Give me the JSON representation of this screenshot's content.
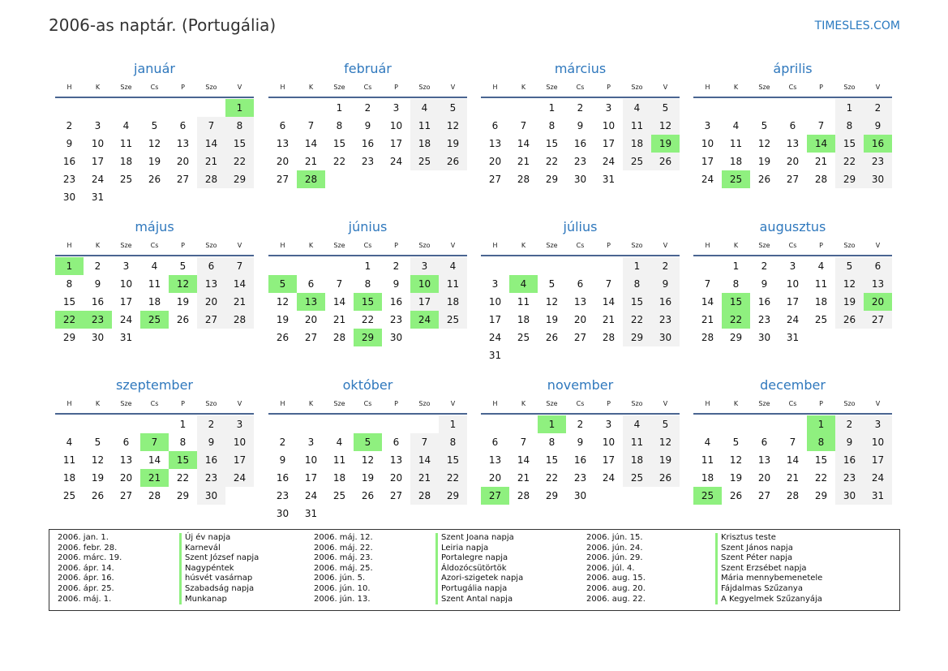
{
  "header": {
    "title": "2006-as naptár. (Portugália)",
    "brand": "TIMESLES.COM"
  },
  "weekdays": [
    "H",
    "K",
    "Sze",
    "Cs",
    "P",
    "Szo",
    "V"
  ],
  "colors": {
    "accent": "#2f78bd",
    "holiday": "#8ff07f",
    "weekend": "#f2f2f2",
    "rule": "#4a6591"
  },
  "months": [
    {
      "name": "január",
      "offset": 6,
      "days": 31,
      "holidays": [
        1
      ]
    },
    {
      "name": "február",
      "offset": 2,
      "days": 28,
      "holidays": [
        28
      ]
    },
    {
      "name": "március",
      "offset": 2,
      "days": 31,
      "holidays": [
        19
      ]
    },
    {
      "name": "április",
      "offset": 5,
      "days": 30,
      "holidays": [
        14,
        16,
        25
      ]
    },
    {
      "name": "május",
      "offset": 0,
      "days": 31,
      "holidays": [
        1,
        12,
        22,
        23,
        25
      ]
    },
    {
      "name": "június",
      "offset": 3,
      "days": 30,
      "holidays": [
        5,
        10,
        13,
        15,
        24,
        29
      ]
    },
    {
      "name": "július",
      "offset": 5,
      "days": 31,
      "holidays": [
        4
      ]
    },
    {
      "name": "augusztus",
      "offset": 1,
      "days": 31,
      "holidays": [
        15,
        20,
        22
      ]
    },
    {
      "name": "szeptember",
      "offset": 4,
      "days": 30,
      "holidays": [
        7,
        15,
        21
      ]
    },
    {
      "name": "október",
      "offset": 6,
      "days": 31,
      "holidays": [
        5
      ]
    },
    {
      "name": "november",
      "offset": 2,
      "days": 30,
      "holidays": [
        1,
        27
      ]
    },
    {
      "name": "december",
      "offset": 4,
      "days": 31,
      "holidays": [
        1,
        8,
        25
      ]
    }
  ],
  "legend": [
    {
      "date": "2006. jan. 1.",
      "name": "Új év napja"
    },
    {
      "date": "2006. febr. 28.",
      "name": "Karnevál"
    },
    {
      "date": "2006. márc. 19.",
      "name": "Szent József napja"
    },
    {
      "date": "2006. ápr. 14.",
      "name": "Nagypéntek"
    },
    {
      "date": "2006. ápr. 16.",
      "name": "húsvét vasárnap"
    },
    {
      "date": "2006. ápr. 25.",
      "name": "Szabadság napja"
    },
    {
      "date": "2006. máj. 1.",
      "name": "Munkanap"
    },
    {
      "date": "2006. máj. 12.",
      "name": "Szent Joana napja"
    },
    {
      "date": "2006. máj. 22.",
      "name": "Leiria napja"
    },
    {
      "date": "2006. máj. 23.",
      "name": "Portalegre napja"
    },
    {
      "date": "2006. máj. 25.",
      "name": "Áldozócsütörtök"
    },
    {
      "date": "2006. jún. 5.",
      "name": "Azori-szigetek napja"
    },
    {
      "date": "2006. jún. 10.",
      "name": "Portugália napja"
    },
    {
      "date": "2006. jún. 13.",
      "name": "Szent Antal napja"
    },
    {
      "date": "2006. jún. 15.",
      "name": "Krisztus teste"
    },
    {
      "date": "2006. jún. 24.",
      "name": "Szent János napja"
    },
    {
      "date": "2006. jún. 29.",
      "name": "Szent Péter napja"
    },
    {
      "date": "2006. júl. 4.",
      "name": "Szent Erzsébet napja"
    },
    {
      "date": "2006. aug. 15.",
      "name": "Mária mennybemenetele"
    },
    {
      "date": "2006. aug. 20.",
      "name": "Fájdalmas Szűzanya"
    },
    {
      "date": "2006. aug. 22.",
      "name": "A Kegyelmek Szűzanyája"
    }
  ]
}
